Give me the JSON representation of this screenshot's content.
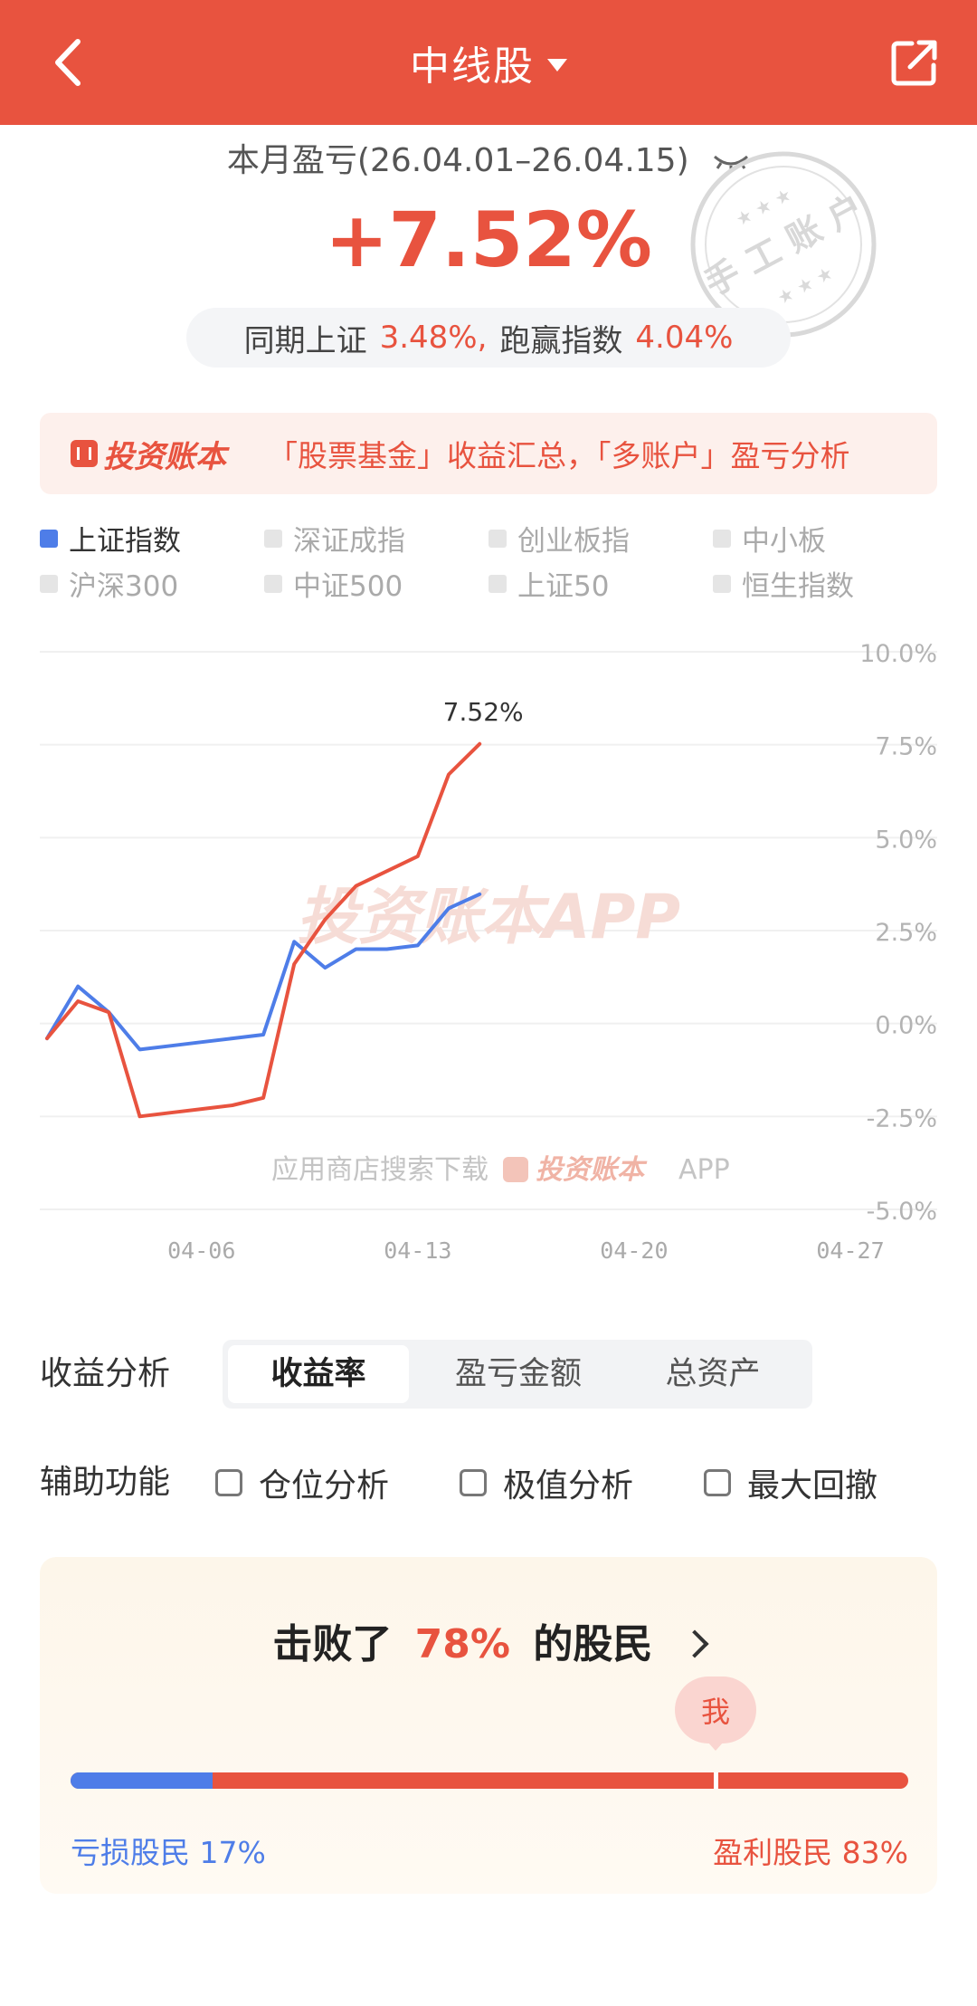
{
  "header": {
    "title": "中线股",
    "back_icon": "chevron-left-icon",
    "share_icon": "share-export-icon"
  },
  "summary": {
    "period_label": "本月盈亏(26.04.01–26.04.15)",
    "return_pct": "+7.52%",
    "compare_label": "同期上证",
    "compare_value": "3.48%,",
    "beat_label": "跑赢指数",
    "beat_value": "4.04%",
    "stamp_text": "手工账户"
  },
  "banner": {
    "logo_text": "投资账本",
    "text": "「股票基金」收益汇总，「多账户」盈亏分析"
  },
  "legend": [
    {
      "label": "上证指数",
      "active": true
    },
    {
      "label": "深证成指",
      "active": false
    },
    {
      "label": "创业板指",
      "active": false
    },
    {
      "label": "中小板",
      "active": false
    },
    {
      "label": "沪深300",
      "active": false
    },
    {
      "label": "中证500",
      "active": false
    },
    {
      "label": "上证50",
      "active": false
    },
    {
      "label": "恒生指数",
      "active": false
    }
  ],
  "chart_data": {
    "type": "line",
    "x_ticks": [
      "04-06",
      "04-13",
      "04-20",
      "04-27"
    ],
    "y_ticks": [
      "10.0%",
      "7.5%",
      "5.0%",
      "2.5%",
      "0.0%",
      "-2.5%",
      "-5.0%"
    ],
    "ylim": [
      -5,
      10
    ],
    "xlim": [
      "04-01",
      "04-27"
    ],
    "watermark": "投资账本APP",
    "footer_text": "应用商店搜索下载",
    "footer_logo": "投资账本",
    "footer_suffix": "APP",
    "end_label": "7.52%",
    "series": [
      {
        "name": "本月盈亏",
        "color": "#e8533f",
        "x": [
          "04-01",
          "04-02",
          "04-03",
          "04-04",
          "04-05",
          "04-06",
          "04-07",
          "04-08",
          "04-09",
          "04-10",
          "04-11",
          "04-12",
          "04-13",
          "04-14",
          "04-15"
        ],
        "values": [
          -0.4,
          0.6,
          0.3,
          -2.5,
          -2.4,
          -2.3,
          -2.2,
          -2.0,
          1.6,
          2.8,
          3.7,
          4.1,
          4.5,
          6.7,
          7.52
        ]
      },
      {
        "name": "上证指数",
        "color": "#4e7de8",
        "x": [
          "04-01",
          "04-02",
          "04-03",
          "04-04",
          "04-05",
          "04-06",
          "04-07",
          "04-08",
          "04-09",
          "04-10",
          "04-11",
          "04-12",
          "04-13",
          "04-14",
          "04-15"
        ],
        "values": [
          -0.4,
          1.0,
          0.3,
          -0.7,
          -0.6,
          -0.5,
          -0.4,
          -0.3,
          2.2,
          1.5,
          2.0,
          2.0,
          2.1,
          3.1,
          3.48
        ]
      }
    ]
  },
  "analysis": {
    "label": "收益分析",
    "tabs": [
      "收益率",
      "盈亏金额",
      "总资产"
    ],
    "active_tab": 0
  },
  "aux": {
    "label": "辅助功能",
    "options": [
      "仓位分析",
      "极值分析",
      "最大回撤"
    ]
  },
  "ranking": {
    "prefix": "击败了",
    "value": "78%",
    "suffix": "的股民",
    "me_label": "我",
    "me_position": 0.77,
    "loss_label": "亏损股民 17%",
    "loss_fraction": 0.17,
    "win_label": "盈利股民 83%"
  }
}
